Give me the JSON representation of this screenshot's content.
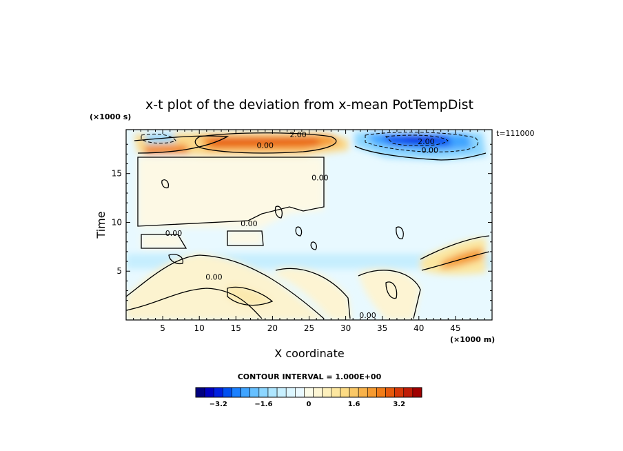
{
  "chart_data": {
    "type": "heatmap",
    "title": "x-t plot of the deviation from x-mean PotTempDist",
    "xlabel": "X coordinate",
    "ylabel": "Time",
    "x_unit": "(×1000 m)",
    "y_unit": "(×1000 s)",
    "time_label": "t=111000",
    "xlim": [
      0,
      50
    ],
    "ylim": [
      0,
      19.5
    ],
    "x_ticks": [
      5,
      10,
      15,
      20,
      25,
      30,
      35,
      40,
      45
    ],
    "y_ticks": [
      5,
      10,
      15
    ],
    "contour_interval_text": "CONTOUR INTERVAL = 1.000E+00",
    "colorbar": {
      "range": [
        -4,
        4
      ],
      "tick_values": [
        -3.2,
        -1.6,
        0,
        1.6,
        3.2
      ],
      "tick_labels": [
        "−3.2",
        "−1.6",
        "0",
        "1.6",
        "3.2"
      ],
      "colors": [
        "#000080",
        "#0000c0",
        "#0020e0",
        "#0050f0",
        "#1a80ff",
        "#3fa4ff",
        "#66c0ff",
        "#8cd6ff",
        "#aee6ff",
        "#c8f0ff",
        "#dcf6ff",
        "#eaf9ff",
        "#fbfbe8",
        "#fdf6d4",
        "#fdf0bc",
        "#fde7a0",
        "#fcdb84",
        "#fbc866",
        "#f8b24a",
        "#f59a30",
        "#f07c18",
        "#e65a0c",
        "#d63808",
        "#bf1c06",
        "#a00000"
      ]
    },
    "contour_labels": [
      {
        "text": "2.00",
        "x": 23.5,
        "y": 19.0
      },
      {
        "text": "0.00",
        "x": 19.0,
        "y": 17.9
      },
      {
        "text": "2.00",
        "x": 41.0,
        "y": 18.3
      },
      {
        "text": "0.00",
        "x": 41.5,
        "y": 17.4
      },
      {
        "text": "0.00",
        "x": 26.5,
        "y": 14.6
      },
      {
        "text": "0.00",
        "x": 16.8,
        "y": 9.9
      },
      {
        "text": "0.00",
        "x": 6.5,
        "y": 8.9
      },
      {
        "text": "0.00",
        "x": 12.0,
        "y": 4.4
      },
      {
        "text": "0.00",
        "x": 33.0,
        "y": 0.5
      }
    ]
  }
}
